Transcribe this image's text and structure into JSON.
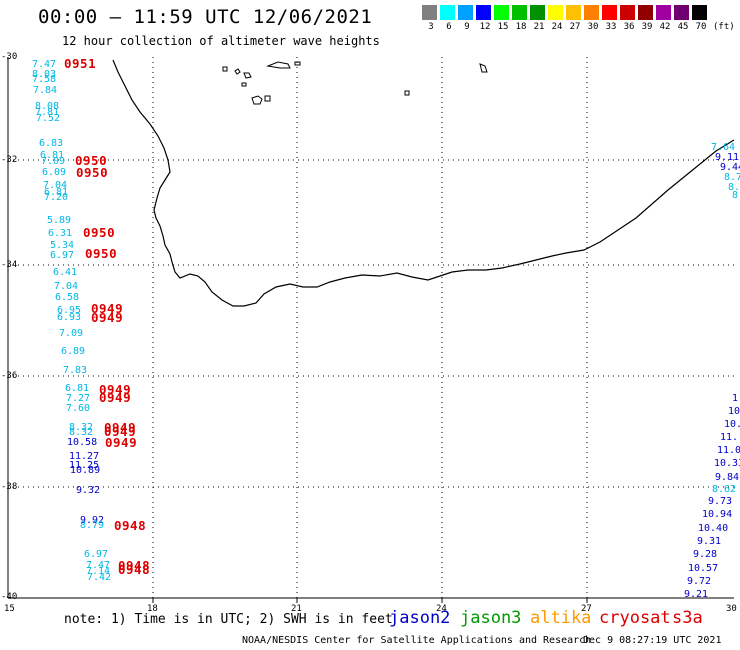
{
  "title": "00:00 – 11:59 UTC 12/06/2021",
  "subtitle": "12 hour collection of altimeter wave heights",
  "legend": {
    "unit": "(ft)",
    "labels": [
      "3",
      "6",
      "9",
      "12",
      "15",
      "18",
      "21",
      "24",
      "27",
      "30",
      "33",
      "36",
      "39",
      "42",
      "45",
      "70"
    ],
    "colors": [
      "#808080",
      "#00ffff",
      "#00a0ff",
      "#0000ff",
      "#00ff00",
      "#00c000",
      "#009000",
      "#ffff00",
      "#ffc000",
      "#ff8000",
      "#ff0000",
      "#cc0000",
      "#900000",
      "#a000a0",
      "#700070",
      "#000000"
    ]
  },
  "axes": {
    "lat_ticks": [
      "-30",
      "-32",
      "-34",
      "-36",
      "-38",
      "-40"
    ],
    "lon_ticks": [
      "15",
      "18",
      "21",
      "24",
      "27",
      "30"
    ]
  },
  "colors": {
    "jason2": "#0000cc",
    "jason3": "#009900",
    "altika": "#ff9900",
    "cryosat": "#dd0000",
    "s3a": "#dd0000",
    "cyan_swh": "#00b8e6",
    "blue_swh": "#0000cc",
    "time_label": "#dd0000"
  },
  "west_track": [
    {
      "v": "7.47",
      "c": "cyan"
    },
    {
      "v": "8.03",
      "c": "cyan"
    },
    {
      "v": "7.58",
      "c": "cyan"
    },
    {
      "v": "7.84",
      "c": "cyan"
    },
    {
      "v": "8.08",
      "c": "cyan"
    },
    {
      "v": "7.81",
      "c": "cyan"
    },
    {
      "v": "7.52",
      "c": "cyan"
    },
    {
      "v": "6.83",
      "c": "cyan"
    },
    {
      "v": "6.81",
      "c": "cyan"
    },
    {
      "v": "7.09",
      "c": "cyan"
    },
    {
      "v": "6.09",
      "c": "cyan"
    },
    {
      "v": "7.04",
      "c": "cyan"
    },
    {
      "v": "6.81",
      "c": "cyan"
    },
    {
      "v": "7.20",
      "c": "cyan"
    },
    {
      "v": "5.89",
      "c": "cyan"
    },
    {
      "v": "6.31",
      "c": "cyan"
    },
    {
      "v": "5.34",
      "c": "cyan"
    },
    {
      "v": "6.97",
      "c": "cyan"
    },
    {
      "v": "6.41",
      "c": "cyan"
    },
    {
      "v": "7.04",
      "c": "cyan"
    },
    {
      "v": "6.58",
      "c": "cyan"
    },
    {
      "v": "6.95",
      "c": "cyan"
    },
    {
      "v": "6.93",
      "c": "cyan"
    },
    {
      "v": "7.09",
      "c": "cyan"
    },
    {
      "v": "6.89",
      "c": "cyan"
    },
    {
      "v": "7.83",
      "c": "cyan"
    },
    {
      "v": "6.81",
      "c": "cyan"
    },
    {
      "v": "7.27",
      "c": "cyan"
    },
    {
      "v": "7.60",
      "c": "cyan"
    },
    {
      "v": "8.32",
      "c": "cyan"
    },
    {
      "v": "8.32",
      "c": "cyan"
    },
    {
      "v": "10.58",
      "c": "blue"
    },
    {
      "v": "11.27",
      "c": "blue"
    },
    {
      "v": "11.25",
      "c": "blue"
    },
    {
      "v": "10.89",
      "c": "blue"
    },
    {
      "v": "9.32",
      "c": "blue"
    },
    {
      "v": "9.92",
      "c": "blue"
    },
    {
      "v": "8.79",
      "c": "cyan"
    },
    {
      "v": "6.97",
      "c": "cyan"
    },
    {
      "v": "7.47",
      "c": "cyan"
    },
    {
      "v": "7.14",
      "c": "cyan"
    },
    {
      "v": "7.42",
      "c": "cyan"
    }
  ],
  "times": [
    "0951",
    "0950",
    "0950",
    "0950",
    "0950",
    "0949",
    "0949",
    "0949",
    "0949",
    "0949",
    "0949",
    "0949",
    "0948",
    "0948",
    "0948"
  ],
  "east_track": [
    {
      "v": "7.64",
      "c": "cyan"
    },
    {
      "v": "9.11",
      "c": "blue"
    },
    {
      "v": "9.44",
      "c": "blue"
    },
    {
      "v": "8.7",
      "c": "cyan"
    },
    {
      "v": "8.",
      "c": "cyan"
    },
    {
      "v": "8",
      "c": "cyan"
    },
    {
      "v": "1",
      "c": "blue"
    },
    {
      "v": "10",
      "c": "blue"
    },
    {
      "v": "10.",
      "c": "blue"
    },
    {
      "v": "11.",
      "c": "blue"
    },
    {
      "v": "11.0",
      "c": "blue"
    },
    {
      "v": "10.33",
      "c": "blue"
    },
    {
      "v": "9.84",
      "c": "blue"
    },
    {
      "v": "8.62",
      "c": "cyan"
    },
    {
      "v": "9.73",
      "c": "blue"
    },
    {
      "v": "10.94",
      "c": "blue"
    },
    {
      "v": "10.40",
      "c": "blue"
    },
    {
      "v": "9.31",
      "c": "blue"
    },
    {
      "v": "9.28",
      "c": "blue"
    },
    {
      "v": "10.57",
      "c": "blue"
    },
    {
      "v": "9.72",
      "c": "blue"
    },
    {
      "v": "9.21",
      "c": "blue"
    }
  ],
  "footer": {
    "note": "note: 1) Time is in UTC; 2) SWH is in feet",
    "satellites": [
      "jason2",
      "jason3",
      "altika",
      "cryosat",
      "s3a"
    ],
    "credit": "NOAA/NESDIS Center for Satellite Applications and Research",
    "timestamp": "Dec  9 08:27:19 UTC 2021"
  }
}
